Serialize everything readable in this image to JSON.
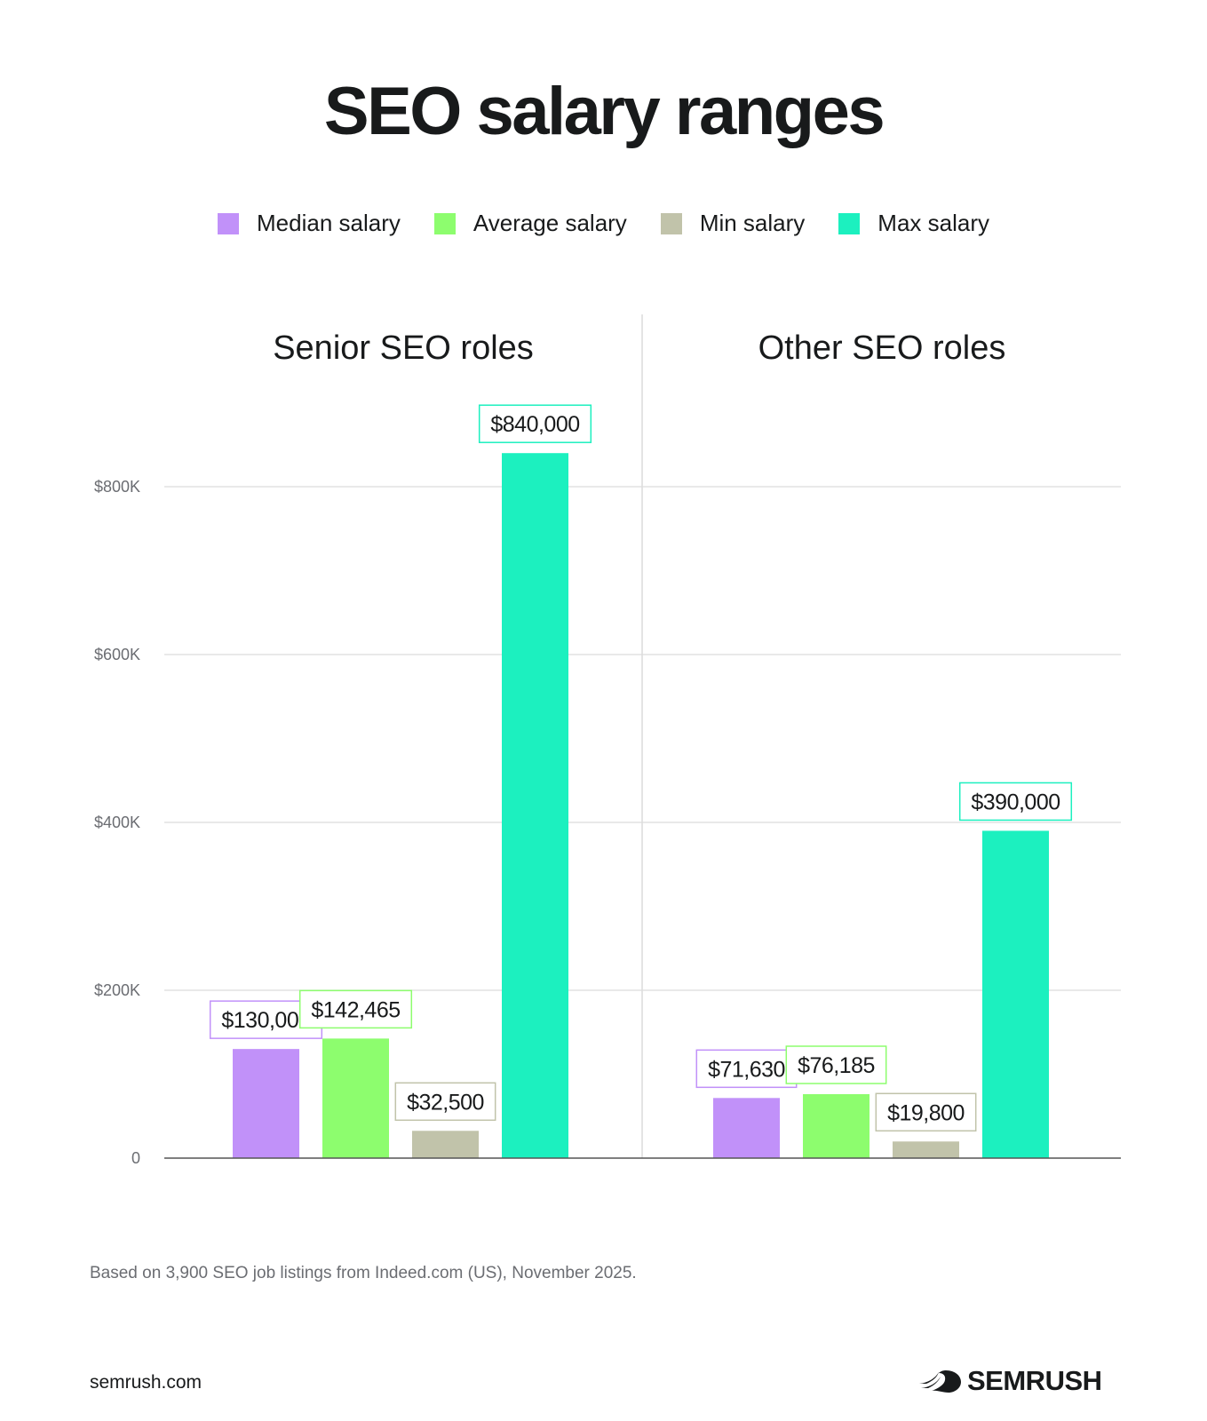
{
  "title": "SEO salary ranges",
  "legend": [
    {
      "label": "Median salary",
      "color": "#c191f9"
    },
    {
      "label": "Average salary",
      "color": "#8dfd6e"
    },
    {
      "label": "Min salary",
      "color": "#c1c3aa"
    },
    {
      "label": "Max salary",
      "color": "#1cf0bf"
    }
  ],
  "chart_data": {
    "type": "bar",
    "ylim": [
      0,
      900000
    ],
    "yticks": [
      {
        "value": 0,
        "label": "0"
      },
      {
        "value": 200000,
        "label": "$200K"
      },
      {
        "value": 400000,
        "label": "$400K"
      },
      {
        "value": 600000,
        "label": "$600K"
      },
      {
        "value": 800000,
        "label": "$800K"
      }
    ],
    "grid": true,
    "legend_position": "top-center",
    "series_names": [
      "Median salary",
      "Average salary",
      "Min salary",
      "Max salary"
    ],
    "panels": [
      {
        "title": "Senior SEO roles",
        "values": [
          130000,
          142465,
          32500,
          840000
        ],
        "labels": [
          "$130,000",
          "$142,465",
          "$32,500",
          "$840,000"
        ]
      },
      {
        "title": "Other SEO roles",
        "values": [
          71630,
          76185,
          19800,
          390000
        ],
        "labels": [
          "$71,630",
          "$76,185",
          "$19,800",
          "$390,000"
        ]
      }
    ]
  },
  "footnote": "Based on 3,900 SEO job listings from Indeed.com (US), November 2025.",
  "site": "semrush.com",
  "brand": "SEMRUSH",
  "brand_icon": "semrush-fireball-icon"
}
